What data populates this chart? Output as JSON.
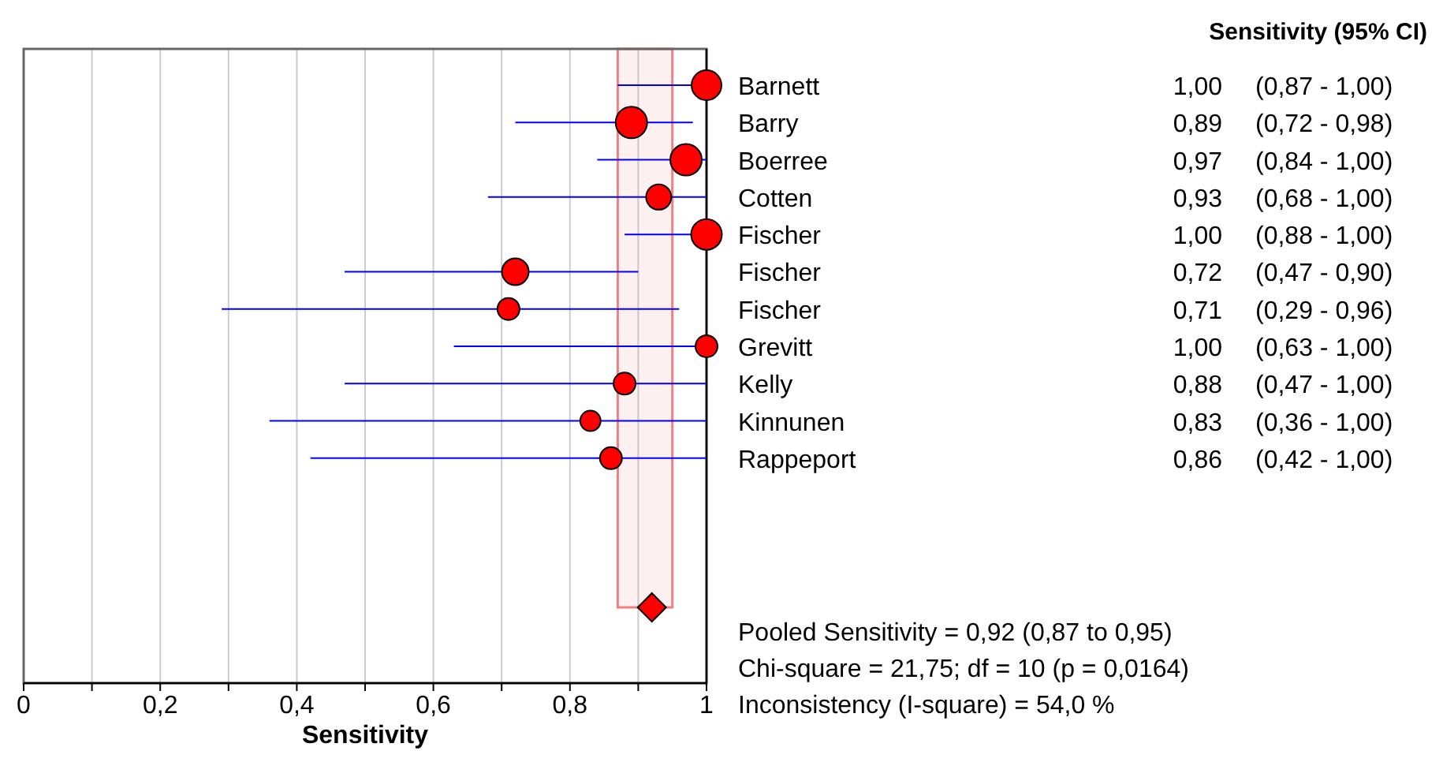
{
  "chart_data": {
    "type": "bubble",
    "orientation": "horizontal",
    "categories": [
      "Barnett",
      "Barry",
      "Boerree",
      "Cotten",
      "Fischer",
      "Fischer",
      "Fischer",
      "Grevitt",
      "Kelly",
      "Kinnunen",
      "Rappeport",
      null,
      null,
      null,
      null
    ],
    "xlabel": "Sensitivity",
    "legend_title": "Sensitivity (95% CI)",
    "xlim": [
      0,
      1
    ],
    "xticks": [
      0,
      {
        "value": 0.1,
        "label": null
      },
      {
        "value": 0.2,
        "label": "0,2"
      },
      {
        "value": 0.3,
        "label": null
      },
      {
        "value": 0.4,
        "label": "0,4"
      },
      {
        "value": 0.5,
        "label": null
      },
      {
        "value": 0.6,
        "label": "0,6"
      },
      {
        "value": 0.7,
        "label": null
      },
      {
        "value": 0.8,
        "label": "0,8"
      },
      {
        "value": 0.9,
        "label": null
      },
      1
    ],
    "grid": "x",
    "series": [
      {
        "color": "#ff0000",
        "marker": "circle",
        "values": [
          1.0,
          0.89,
          0.97,
          0.93,
          1.0,
          0.72,
          0.71,
          1.0,
          0.88,
          0.83,
          0.86,
          null,
          null,
          null,
          null
        ],
        "sizes": [
          0.9,
          1,
          1,
          0.64,
          0.95,
          0.72,
          0.49,
          0.49,
          0.49,
          0.42,
          0.49,
          null,
          null,
          null,
          null
        ],
        "errors": [
          [
            0.87,
            1.0
          ],
          [
            0.72,
            0.98
          ],
          [
            0.84,
            1.0
          ],
          [
            0.68,
            1.0
          ],
          [
            0.88,
            1.0
          ],
          [
            0.47,
            0.9
          ],
          [
            0.29,
            0.96
          ],
          [
            0.63,
            1.0
          ],
          [
            0.47,
            1.0
          ],
          [
            0.36,
            1.0
          ],
          [
            0.42,
            1.0
          ],
          null,
          null,
          null,
          null
        ],
        "value_labels": [
          "1,00 (0,87 - 1,00)",
          "0,89 (0,72 - 0,98)",
          "0,97 (0,84 - 1,00)",
          "0,93 (0,68 - 1,00)",
          "1,00 (0,88 - 1,00)",
          "0,72 (0,47 - 0,90)",
          "0,71 (0,29 - 0,96)",
          "1,00 (0,63 - 1,00)",
          "0,88 (0,47 - 1,00)",
          "0,83 (0,36 - 1,00)",
          "0,86 (0,42 - 1,00)",
          null,
          null,
          null,
          null
        ]
      },
      {
        "type": "scatter",
        "color": "#ff0000",
        "marker": "diamond",
        "values": [
          null,
          null,
          null,
          null,
          null,
          null,
          null,
          null,
          null,
          null,
          null,
          null,
          null,
          null,
          0.92
        ]
      }
    ],
    "bands": [
      {
        "axis": "x",
        "from": 0.87,
        "to": 0.95,
        "color": "#f08080"
      }
    ],
    "annotations": [
      "Pooled Sensitivity = 0,92 (0,87 to 0,95)",
      "Chi-square = 21,75; df =  10 (p = 0,0164)",
      "Inconsistency (I-square) = 54,0 %"
    ]
  }
}
